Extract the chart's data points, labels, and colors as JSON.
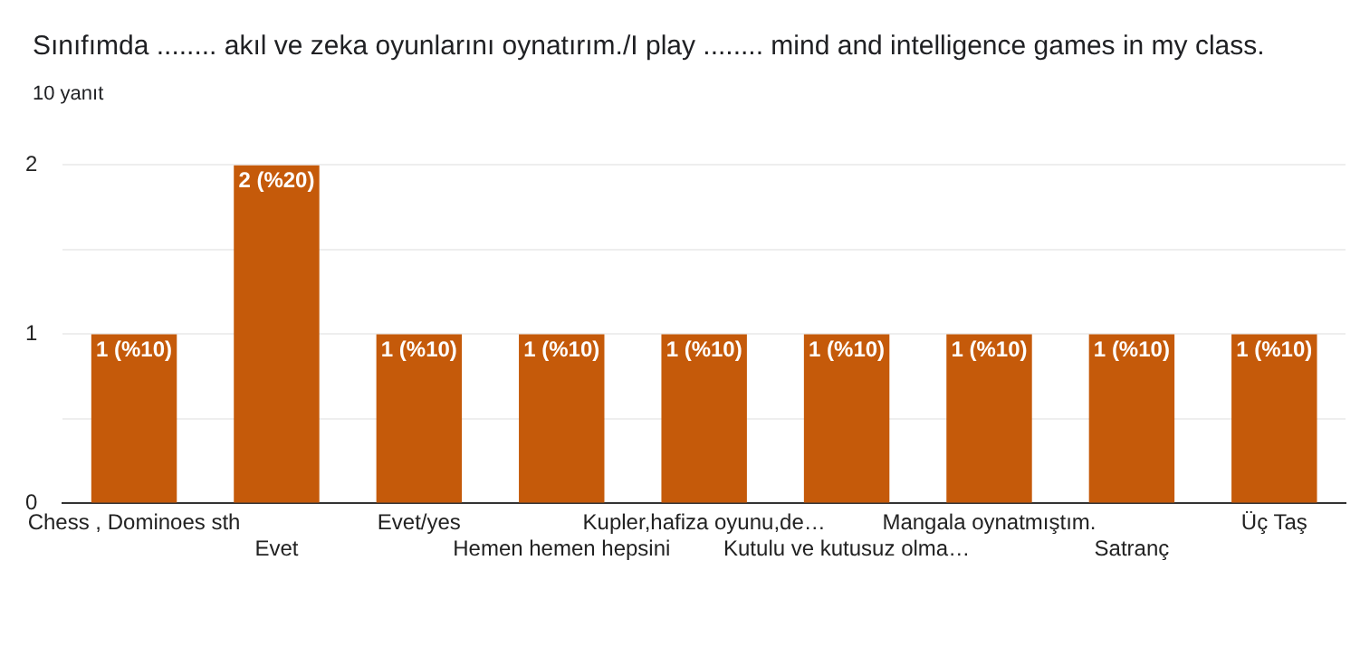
{
  "chart_data": {
    "type": "bar",
    "title": "Sınıfımda ........ akıl ve zeka oyunlarını oynatırım./I play ........ mind and intelligence games in my class.",
    "subtitle": "10 yanıt",
    "categories": [
      "Chess , Dominoes sth",
      "Evet",
      "Evet/yes",
      "Hemen hemen hepsini",
      "Kupler,hafiza oyunu,de…",
      "Kutulu ve kutusuz olma…",
      "Mangala oynatmıştım.",
      "Satranç",
      "Üç Taş"
    ],
    "values": [
      1,
      2,
      1,
      1,
      1,
      1,
      1,
      1,
      1
    ],
    "value_labels": [
      "1 (%10)",
      "2 (%20)",
      "1 (%10)",
      "1 (%10)",
      "1 (%10)",
      "1 (%10)",
      "1 (%10)",
      "1 (%10)",
      "1 (%10)"
    ],
    "color": "#c55a0a",
    "ylim": [
      0,
      2
    ],
    "yticks": [
      0,
      {
        "value": 0.5,
        "label": null
      },
      1,
      {
        "value": 1.5,
        "label": null
      },
      2
    ],
    "grid": "y",
    "legend": false
  }
}
